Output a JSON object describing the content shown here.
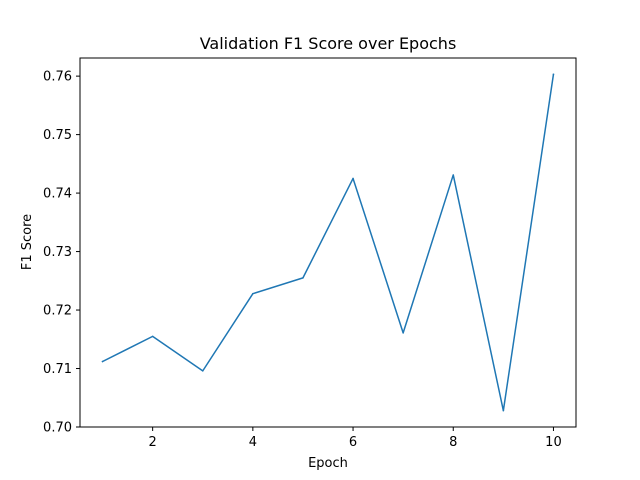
{
  "chart_data": {
    "type": "line",
    "title": "Validation F1 Score over Epochs",
    "xlabel": "Epoch",
    "ylabel": "F1 Score",
    "xlim": [
      0.55,
      10.45
    ],
    "ylim": [
      0.7,
      0.7631
    ],
    "xticks": [
      2,
      4,
      6,
      8,
      10
    ],
    "xtick_labels": [
      "2",
      "4",
      "6",
      "8",
      "10"
    ],
    "yticks": [
      0.7,
      0.71,
      0.72,
      0.73,
      0.74,
      0.75,
      0.76
    ],
    "ytick_labels": [
      "0.70",
      "0.71",
      "0.72",
      "0.73",
      "0.74",
      "0.75",
      "0.76"
    ],
    "grid": false,
    "series": [
      {
        "color": "#1f77b4",
        "x": [
          1,
          2,
          3,
          4,
          5,
          6,
          7,
          8,
          9,
          10
        ],
        "y": [
          0.7112,
          0.7155,
          0.7096,
          0.7228,
          0.7255,
          0.7425,
          0.7161,
          0.7431,
          0.7028,
          0.7603
        ]
      }
    ]
  }
}
